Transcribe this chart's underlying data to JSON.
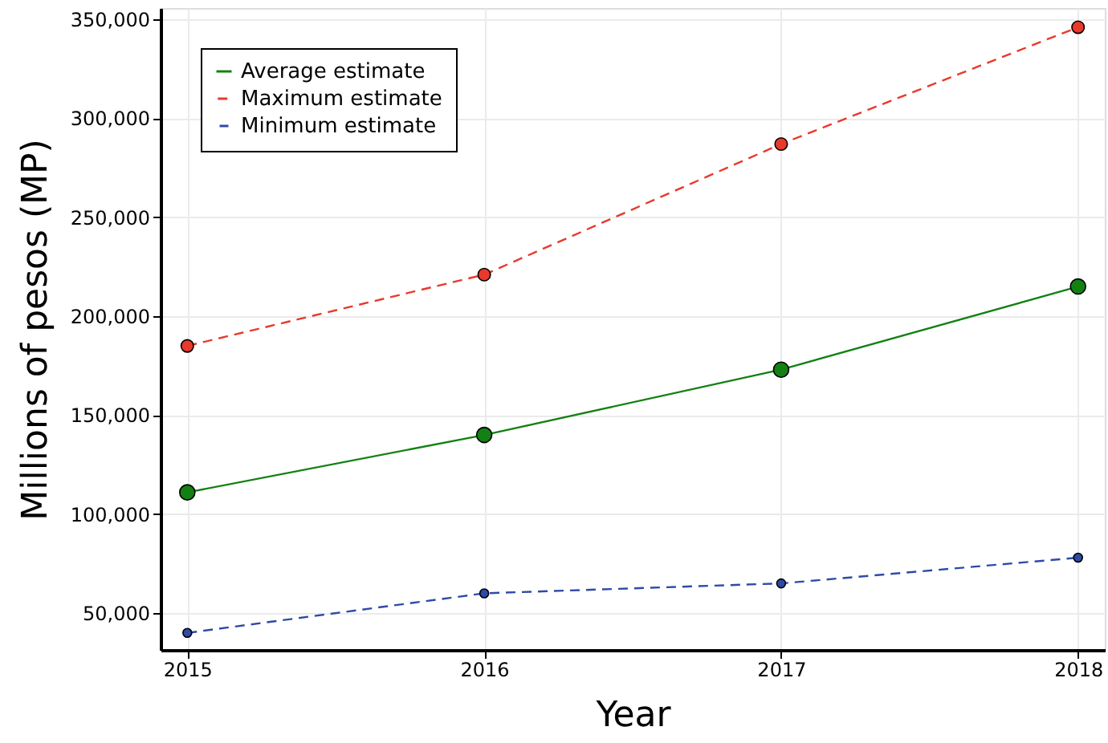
{
  "chart_data": {
    "type": "line",
    "xlabel": "Year",
    "ylabel": "Millions of pesos (MP)",
    "x": [
      2015,
      2016,
      2017,
      2018
    ],
    "xlim": [
      2014.91,
      2018.09
    ],
    "xticks": [
      2015,
      2016,
      2017,
      2018
    ],
    "ylim": [
      31400,
      355700
    ],
    "yticks": [
      {
        "value": 50000,
        "label": "50,000"
      },
      {
        "value": 100000,
        "label": "100,000"
      },
      {
        "value": 150000,
        "label": "150,000"
      },
      {
        "value": 200000,
        "label": "200,000"
      },
      {
        "value": 250000,
        "label": "250,000"
      },
      {
        "value": 300000,
        "label": "300,000"
      },
      {
        "value": 350000,
        "label": "350,000"
      }
    ],
    "grid": true,
    "legend": "top left",
    "marker": "circle",
    "series": [
      {
        "name": "Average estimate",
        "color": "#138013",
        "line_style": "solid",
        "values": [
          111000,
          140000,
          173000,
          215000
        ]
      },
      {
        "name": "Maximum estimate",
        "color": "#e8392c",
        "line_style": "dashed",
        "values": [
          185000,
          221000,
          287000,
          346000
        ]
      },
      {
        "name": "Minimum estimate",
        "color": "#2f4aa6",
        "line_style": "dashed",
        "values": [
          40000,
          60000,
          65000,
          78000
        ]
      }
    ]
  }
}
